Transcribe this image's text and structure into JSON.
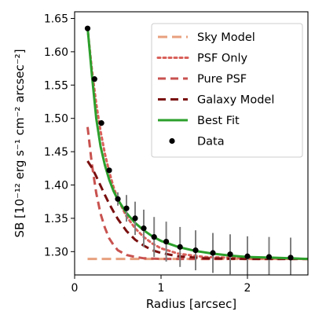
{
  "chart_data": {
    "type": "line",
    "xlabel": "Radius [arcsec]",
    "ylabel": "SB [10⁻¹² erg s⁻¹ cm⁻² arcsec⁻²]",
    "xlim": [
      0.0,
      2.7
    ],
    "ylim": [
      1.265,
      1.66
    ],
    "x_ticks": [
      0,
      1,
      2
    ],
    "y_ticks": [
      1.3,
      1.35,
      1.4,
      1.45,
      1.5,
      1.55,
      1.6,
      1.65
    ],
    "x_tick_labels": [
      "0",
      "1",
      "2"
    ],
    "y_tick_labels": [
      "1.30",
      "1.35",
      "1.40",
      "1.45",
      "1.50",
      "1.55",
      "1.60",
      "1.65"
    ],
    "legend_position": "top-right",
    "grid": false,
    "series": [
      {
        "name": "Sky Model",
        "style": "dashed",
        "color": "#e8a07e",
        "x": [
          0.15,
          2.7
        ],
        "y": [
          1.289,
          1.289
        ]
      },
      {
        "name": "PSF Only",
        "style": "dotted",
        "color": "#d9605a",
        "x": [
          0.15,
          0.2,
          0.25,
          0.3,
          0.35,
          0.4,
          0.45,
          0.5,
          0.6,
          0.7,
          0.8,
          0.9,
          1.0,
          1.2,
          1.5,
          2.0,
          2.7
        ],
        "y": [
          1.635,
          1.573,
          1.522,
          1.481,
          1.447,
          1.42,
          1.397,
          1.379,
          1.353,
          1.335,
          1.322,
          1.312,
          1.305,
          1.297,
          1.292,
          1.29,
          1.289
        ]
      },
      {
        "name": "Pure PSF",
        "style": "dashed",
        "color": "#c8524f",
        "x": [
          0.15,
          0.2,
          0.25,
          0.3,
          0.35,
          0.4,
          0.45,
          0.5,
          0.6,
          0.7,
          0.8,
          1.0,
          1.2,
          1.5,
          2.0,
          2.7
        ],
        "y": [
          1.487,
          1.431,
          1.388,
          1.357,
          1.336,
          1.32,
          1.31,
          1.302,
          1.295,
          1.292,
          1.29,
          1.289,
          1.289,
          1.289,
          1.289,
          1.289
        ]
      },
      {
        "name": "Galaxy Model",
        "style": "dashed",
        "color": "#7a0f0f",
        "x": [
          0.15,
          0.2,
          0.25,
          0.3,
          0.35,
          0.4,
          0.45,
          0.5,
          0.6,
          0.7,
          0.8,
          0.9,
          1.0,
          1.2,
          1.5,
          2.0,
          2.7
        ],
        "y": [
          1.436,
          1.426,
          1.413,
          1.399,
          1.385,
          1.372,
          1.36,
          1.349,
          1.331,
          1.318,
          1.309,
          1.302,
          1.298,
          1.293,
          1.29,
          1.289,
          1.289
        ]
      },
      {
        "name": "Best Fit",
        "style": "solid",
        "color": "#2ca02c",
        "x": [
          0.15,
          0.2,
          0.25,
          0.3,
          0.35,
          0.4,
          0.45,
          0.5,
          0.6,
          0.7,
          0.8,
          0.9,
          1.0,
          1.2,
          1.4,
          1.6,
          1.8,
          2.0,
          2.25,
          2.5,
          2.7
        ],
        "y": [
          1.636,
          1.565,
          1.5,
          1.458,
          1.43,
          1.408,
          1.391,
          1.378,
          1.358,
          1.343,
          1.332,
          1.323,
          1.316,
          1.307,
          1.301,
          1.297,
          1.294,
          1.292,
          1.291,
          1.29,
          1.289
        ]
      },
      {
        "name": "Data",
        "style": "markers-errorbars",
        "color": "#000000",
        "errorbar_color": "#808080",
        "x": [
          0.15,
          0.23,
          0.31,
          0.4,
          0.5,
          0.6,
          0.7,
          0.8,
          0.92,
          1.06,
          1.22,
          1.4,
          1.6,
          1.8,
          2.0,
          2.25,
          2.5
        ],
        "y": [
          1.635,
          1.559,
          1.493,
          1.422,
          1.379,
          1.365,
          1.35,
          1.335,
          1.322,
          1.315,
          1.307,
          1.302,
          1.298,
          1.296,
          1.293,
          1.292,
          1.291
        ],
        "yerr": [
          0,
          0,
          0,
          0,
          0.01,
          0.02,
          0.025,
          0.028,
          0.03,
          0.03,
          0.03,
          0.03,
          0.03,
          0.03,
          0.03,
          0.03,
          0.03
        ]
      }
    ],
    "legend": [
      "Sky Model",
      "PSF Only",
      "Pure PSF",
      "Galaxy Model",
      "Best Fit",
      "Data"
    ]
  }
}
